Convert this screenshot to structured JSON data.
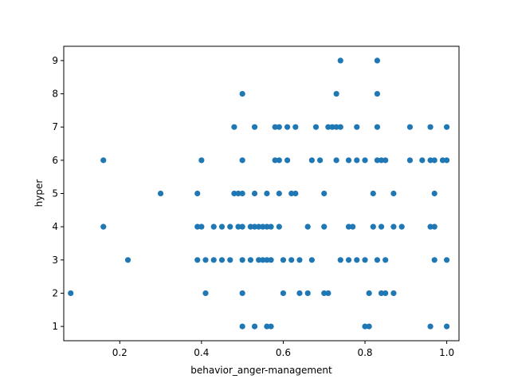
{
  "chart_data": {
    "type": "scatter",
    "title": "",
    "xlabel": "behavior_anger-management",
    "ylabel": "hyper",
    "xlim": [
      0.063,
      1.03
    ],
    "ylim": [
      0.57,
      9.43
    ],
    "xticks": [
      "0.2",
      "0.4",
      "0.6",
      "0.8",
      "1.0"
    ],
    "yticks": [
      "1",
      "2",
      "3",
      "4",
      "5",
      "6",
      "7",
      "8",
      "9"
    ],
    "grid": false,
    "marker_color": "#1f77b4",
    "points": [
      [
        0.08,
        2
      ],
      [
        0.16,
        6
      ],
      [
        0.16,
        4
      ],
      [
        0.22,
        3
      ],
      [
        0.3,
        5
      ],
      [
        0.39,
        5
      ],
      [
        0.39,
        4
      ],
      [
        0.39,
        3
      ],
      [
        0.4,
        6
      ],
      [
        0.4,
        4
      ],
      [
        0.41,
        3
      ],
      [
        0.41,
        2
      ],
      [
        0.43,
        4
      ],
      [
        0.43,
        3
      ],
      [
        0.45,
        4
      ],
      [
        0.45,
        3
      ],
      [
        0.47,
        4
      ],
      [
        0.47,
        3
      ],
      [
        0.48,
        7
      ],
      [
        0.48,
        5
      ],
      [
        0.49,
        5
      ],
      [
        0.49,
        4
      ],
      [
        0.5,
        8
      ],
      [
        0.5,
        6
      ],
      [
        0.5,
        5
      ],
      [
        0.5,
        4
      ],
      [
        0.5,
        3
      ],
      [
        0.5,
        2
      ],
      [
        0.5,
        1
      ],
      [
        0.52,
        4
      ],
      [
        0.52,
        3
      ],
      [
        0.53,
        7
      ],
      [
        0.53,
        5
      ],
      [
        0.53,
        4
      ],
      [
        0.53,
        1
      ],
      [
        0.54,
        4
      ],
      [
        0.54,
        3
      ],
      [
        0.55,
        4
      ],
      [
        0.55,
        3
      ],
      [
        0.56,
        5
      ],
      [
        0.56,
        4
      ],
      [
        0.56,
        3
      ],
      [
        0.56,
        1
      ],
      [
        0.57,
        4
      ],
      [
        0.57,
        3
      ],
      [
        0.57,
        1
      ],
      [
        0.58,
        7
      ],
      [
        0.58,
        6
      ],
      [
        0.59,
        7
      ],
      [
        0.59,
        6
      ],
      [
        0.59,
        5
      ],
      [
        0.59,
        4
      ],
      [
        0.6,
        3
      ],
      [
        0.6,
        2
      ],
      [
        0.61,
        7
      ],
      [
        0.61,
        6
      ],
      [
        0.62,
        5
      ],
      [
        0.62,
        3
      ],
      [
        0.63,
        7
      ],
      [
        0.63,
        5
      ],
      [
        0.64,
        3
      ],
      [
        0.64,
        2
      ],
      [
        0.66,
        4
      ],
      [
        0.66,
        2
      ],
      [
        0.67,
        6
      ],
      [
        0.67,
        3
      ],
      [
        0.68,
        7
      ],
      [
        0.69,
        6
      ],
      [
        0.7,
        5
      ],
      [
        0.7,
        4
      ],
      [
        0.7,
        2
      ],
      [
        0.71,
        7
      ],
      [
        0.71,
        2
      ],
      [
        0.72,
        7
      ],
      [
        0.73,
        8
      ],
      [
        0.73,
        7
      ],
      [
        0.73,
        6
      ],
      [
        0.74,
        9
      ],
      [
        0.74,
        7
      ],
      [
        0.74,
        3
      ],
      [
        0.76,
        6
      ],
      [
        0.76,
        4
      ],
      [
        0.76,
        3
      ],
      [
        0.77,
        4
      ],
      [
        0.78,
        7
      ],
      [
        0.78,
        6
      ],
      [
        0.78,
        3
      ],
      [
        0.8,
        6
      ],
      [
        0.8,
        3
      ],
      [
        0.8,
        1
      ],
      [
        0.81,
        2
      ],
      [
        0.81,
        1
      ],
      [
        0.82,
        5
      ],
      [
        0.82,
        4
      ],
      [
        0.83,
        9
      ],
      [
        0.83,
        8
      ],
      [
        0.83,
        7
      ],
      [
        0.83,
        6
      ],
      [
        0.83,
        3
      ],
      [
        0.84,
        6
      ],
      [
        0.84,
        4
      ],
      [
        0.84,
        2
      ],
      [
        0.85,
        6
      ],
      [
        0.85,
        3
      ],
      [
        0.85,
        2
      ],
      [
        0.87,
        5
      ],
      [
        0.87,
        4
      ],
      [
        0.87,
        2
      ],
      [
        0.89,
        4
      ],
      [
        0.91,
        7
      ],
      [
        0.91,
        6
      ],
      [
        0.94,
        6
      ],
      [
        0.96,
        7
      ],
      [
        0.96,
        6
      ],
      [
        0.96,
        4
      ],
      [
        0.96,
        1
      ],
      [
        0.97,
        6
      ],
      [
        0.97,
        5
      ],
      [
        0.97,
        4
      ],
      [
        0.97,
        3
      ],
      [
        0.99,
        6
      ],
      [
        1.0,
        7
      ],
      [
        1.0,
        6
      ],
      [
        1.0,
        3
      ],
      [
        1.0,
        1
      ]
    ]
  }
}
